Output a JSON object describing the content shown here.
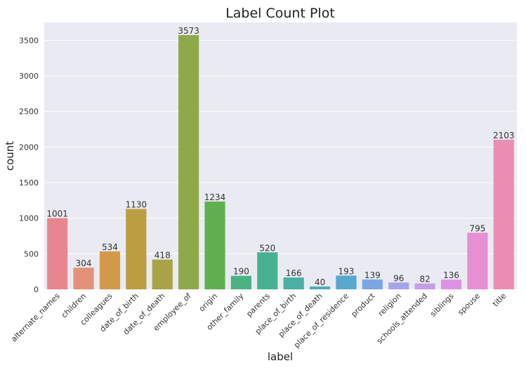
{
  "chart_data": {
    "type": "bar",
    "title": "Label Count Plot",
    "xlabel": "label",
    "ylabel": "count",
    "ylim": [
      0,
      3750
    ],
    "yticks": [
      0,
      500,
      1000,
      1500,
      2000,
      2500,
      3000,
      3500
    ],
    "grid": true,
    "categories": [
      "alternate_names",
      "children",
      "colleagues",
      "date_of_birth",
      "date_of_death",
      "employee_of",
      "origin",
      "other_family",
      "parents",
      "place_of_birth",
      "place_of_death",
      "place_of_residence",
      "product",
      "religion",
      "schools_attended",
      "siblings",
      "spouse",
      "title"
    ],
    "values": [
      1001,
      304,
      534,
      1130,
      418,
      3573,
      1234,
      190,
      520,
      166,
      40,
      193,
      139,
      96,
      82,
      136,
      795,
      2103
    ],
    "colors": [
      "#e8868f",
      "#e4917a",
      "#d29a48",
      "#bb9e42",
      "#a8a347",
      "#8fa94a",
      "#5fb051",
      "#4cb283",
      "#47b190",
      "#49b0a4",
      "#4eacb9",
      "#56a8cf",
      "#79a7e6",
      "#a4a4ec",
      "#c49ee9",
      "#dd92e6",
      "#e68fd3",
      "#ea8eb4"
    ]
  }
}
